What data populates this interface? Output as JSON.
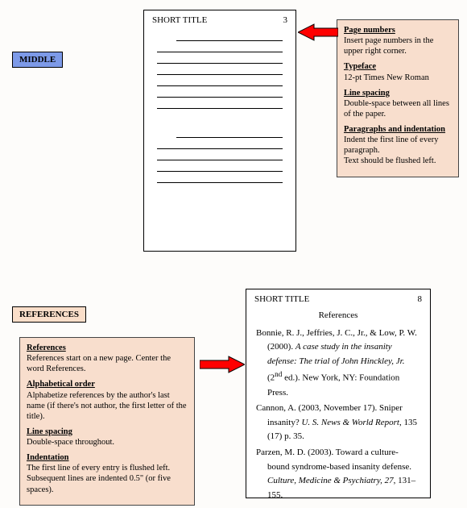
{
  "colors": {
    "middle_label_bg": "#7d9ae8",
    "ref_label_bg": "#fadec9",
    "callout_bg": "#f8decd",
    "arrow_fill": "#ff0000",
    "arrow_stroke": "#000000",
    "page_bg": "#ffffff",
    "body_bg": "#fdfcfa"
  },
  "labels": {
    "middle": "MIDDLE",
    "references": "REFERENCES"
  },
  "page_middle": {
    "running_head": "SHORT TITLE",
    "page_number": "3",
    "ruled_lines_group1": 7,
    "ruled_lines_group2": 5,
    "first_line_indent": true
  },
  "page_refs": {
    "running_head": "SHORT TITLE",
    "page_number": "8",
    "heading": "References",
    "entries": [
      {
        "prefix": "Bonnie, R. J., Jeffries, J. C., Jr., & Low, P. W. (2000). ",
        "italic1": "A case study in the insanity defense: The trial of John Hinckley, Jr.",
        "mid": "  (2",
        "sup": "nd",
        "suffix": " ed.). New York, NY: Foundation Press."
      },
      {
        "prefix": "Cannon, A. (2003, November 17). Sniper insanity?  ",
        "italic1": "U. S. News & World Report",
        "suffix": ", 135 (17) p. 35."
      },
      {
        "prefix": "Parzen, M. D. (2003). Toward a culture-bound syndrome-based insanity defense.  ",
        "italic1": "Culture, Medicine & Psychiatry",
        "suffix2_italic": ", 27",
        "suffix": ", 131–155."
      }
    ]
  },
  "callout_right": {
    "sections": [
      {
        "heading": "Page numbers",
        "body": "Insert page numbers in the upper right corner."
      },
      {
        "heading": "Typeface",
        "body": "12-pt Times New Roman"
      },
      {
        "heading": "Line spacing",
        "body": "Double-space between all lines of the paper."
      },
      {
        "heading": "Paragraphs and indentation",
        "body": "Indent the first line of every paragraph.\nText should be flushed left."
      }
    ]
  },
  "callout_left": {
    "sections": [
      {
        "heading": "References",
        "body": "References start on a new page. Center the word References."
      },
      {
        "heading": "Alphabetical order",
        "body": "Alphabetize references by the author's last name (if there's not author, the first letter of the title)."
      },
      {
        "heading": "Line spacing",
        "body": "Double-space throughout."
      },
      {
        "heading": "Indentation",
        "body": "The first line of every entry is flushed left. Subsequent lines are indented 0.5\" (or five spaces)."
      }
    ]
  }
}
